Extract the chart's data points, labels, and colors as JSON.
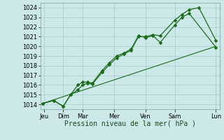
{
  "xlabel": "Pression niveau de la mer( hPa )",
  "background_color": "#cce8e8",
  "grid_color": "#b0d4d4",
  "line_color": "#1a6b1a",
  "ylim": [
    1013.5,
    1024.5
  ],
  "xlim": [
    -0.05,
    7.35
  ],
  "xtick_labels": [
    "Jeu",
    "Dim",
    "Mar",
    "Mer",
    "Ven",
    "Sam",
    "Lun"
  ],
  "xtick_positions": [
    0.1,
    0.9,
    1.7,
    3.0,
    4.3,
    5.5,
    7.2
  ],
  "line1_x": [
    0.05,
    0.5,
    0.9,
    1.2,
    1.5,
    1.7,
    1.9,
    2.1,
    2.5,
    2.8,
    3.1,
    3.4,
    3.7,
    4.0,
    4.3,
    4.6,
    4.9,
    5.5,
    5.8,
    6.1,
    7.2
  ],
  "line1_y": [
    1014.1,
    1014.4,
    1013.8,
    1015.0,
    1016.0,
    1016.3,
    1016.3,
    1016.2,
    1017.5,
    1018.3,
    1019.0,
    1019.3,
    1019.7,
    1021.1,
    1020.9,
    1021.1,
    1020.4,
    1022.2,
    1023.0,
    1023.4,
    1019.9
  ],
  "line2_x": [
    0.05,
    0.5,
    0.9,
    1.2,
    1.5,
    1.7,
    1.9,
    2.1,
    2.5,
    2.8,
    3.1,
    3.4,
    3.7,
    4.0,
    4.3,
    4.6,
    4.9,
    5.5,
    5.8,
    6.1,
    6.5,
    7.2
  ],
  "line2_y": [
    1014.1,
    1014.4,
    1013.8,
    1015.0,
    1015.5,
    1016.0,
    1016.2,
    1016.1,
    1017.3,
    1018.1,
    1018.8,
    1019.2,
    1019.6,
    1021.0,
    1021.0,
    1021.2,
    1021.1,
    1022.7,
    1023.3,
    1023.8,
    1024.0,
    1020.6
  ],
  "line3_x": [
    0.05,
    7.2
  ],
  "line3_y": [
    1014.1,
    1020.0
  ],
  "ytick_start": 1014,
  "ytick_end": 1024,
  "ytick_step": 1,
  "xlabel_fontsize": 7,
  "tick_fontsize": 6
}
